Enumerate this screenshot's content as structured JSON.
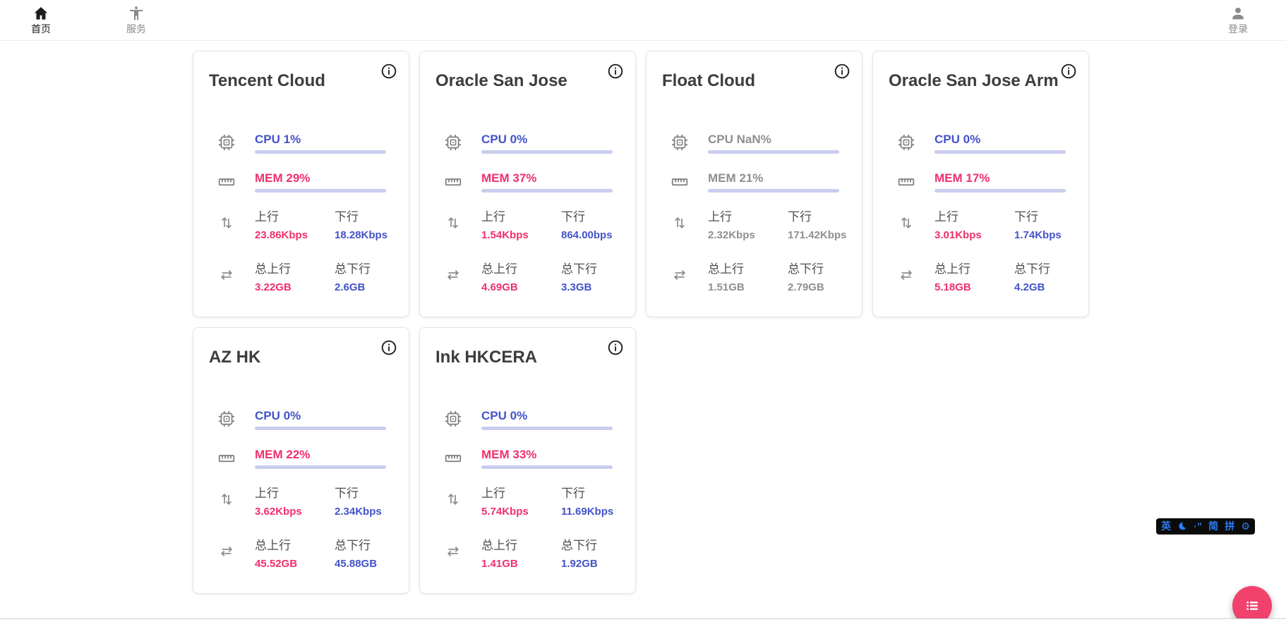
{
  "nav": {
    "home": {
      "label": "首页",
      "icon": "home-icon"
    },
    "services": {
      "label": "服务",
      "icon": "accessibility-icon"
    },
    "login": {
      "label": "登录",
      "icon": "person-icon"
    }
  },
  "labels": {
    "up": "上行",
    "down": "下行",
    "total_up": "总上行",
    "total_down": "总下行"
  },
  "servers": [
    {
      "name": "Tencent Cloud",
      "cpu_text": "CPU 1%",
      "cpu_pct": 1,
      "mem_text": "MEM 29%",
      "mem_pct": 29,
      "up": "23.86Kbps",
      "down": "18.28Kbps",
      "total_up": "3.22GB",
      "total_down": "2.6GB",
      "online": true
    },
    {
      "name": "Oracle San Jose",
      "cpu_text": "CPU 0%",
      "cpu_pct": 0,
      "mem_text": "MEM 37%",
      "mem_pct": 37,
      "up": "1.54Kbps",
      "down": "864.00bps",
      "total_up": "4.69GB",
      "total_down": "3.3GB",
      "online": true
    },
    {
      "name": "Float Cloud",
      "cpu_text": "CPU NaN%",
      "cpu_pct": null,
      "mem_text": "MEM 21%",
      "mem_pct": 21,
      "up": "2.32Kbps",
      "down": "171.42Kbps",
      "total_up": "1.51GB",
      "total_down": "2.79GB",
      "online": false
    },
    {
      "name": "Oracle San Jose Arm",
      "cpu_text": "CPU 0%",
      "cpu_pct": 0,
      "mem_text": "MEM 17%",
      "mem_pct": 17,
      "up": "3.01Kbps",
      "down": "1.74Kbps",
      "total_up": "5.18GB",
      "total_down": "4.2GB",
      "online": true
    },
    {
      "name": "AZ HK",
      "cpu_text": "CPU 0%",
      "cpu_pct": 0,
      "mem_text": "MEM 22%",
      "mem_pct": 22,
      "up": "3.62Kbps",
      "down": "2.34Kbps",
      "total_up": "45.52GB",
      "total_down": "45.88GB",
      "online": true
    },
    {
      "name": "Ink HKCERA",
      "cpu_text": "CPU 0%",
      "cpu_pct": 0,
      "mem_text": "MEM 33%",
      "mem_pct": 33,
      "up": "5.74Kbps",
      "down": "11.69Kbps",
      "total_up": "1.41GB",
      "total_down": "1.92GB",
      "online": true
    }
  ],
  "ime_bar": {
    "lang": "英",
    "moon": "moon-icon",
    "punct": "·”",
    "simplified": "简",
    "pinyin": "拼",
    "settings": "gear-icon",
    "settings_glyph": "⚙"
  },
  "fab": {
    "icon": "list-icon"
  },
  "colors": {
    "accent_blue": "#4353c9",
    "accent_pink": "#f0306c",
    "bar_track": "#c9cdee",
    "fab_pink": "#f1426e",
    "ime_blue": "#2b7cf0",
    "ime_bg": "#0b0b0b"
  }
}
